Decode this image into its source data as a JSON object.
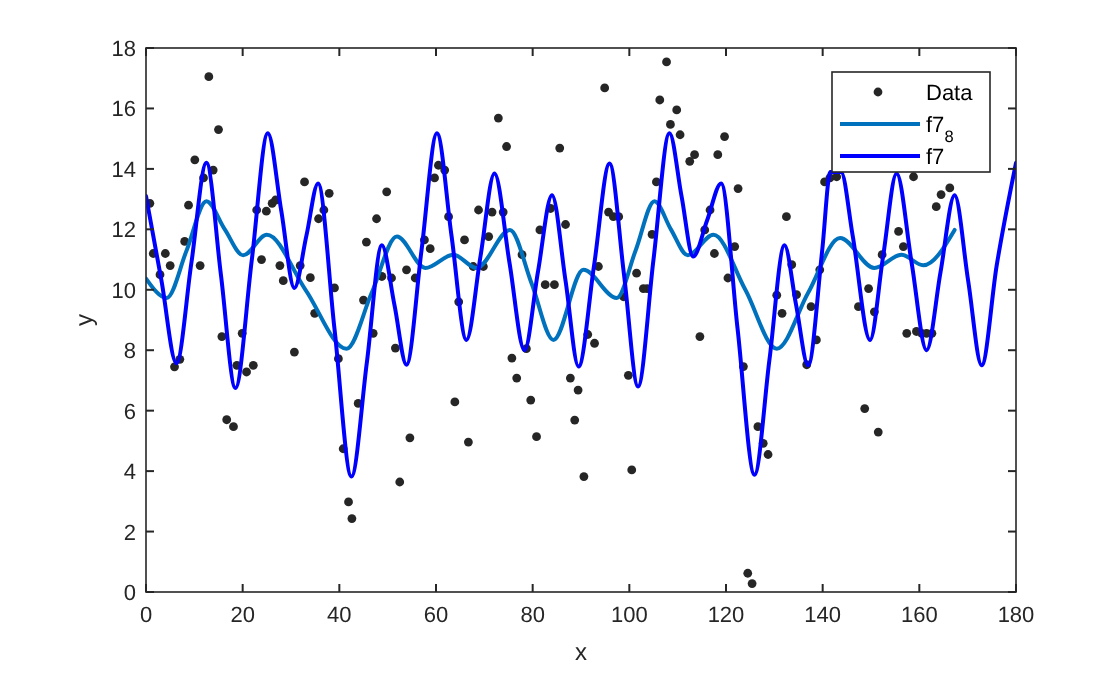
{
  "chart_data": {
    "type": "scatter",
    "xlabel": "x",
    "ylabel": "y",
    "xlim": [
      0,
      180
    ],
    "ylim": [
      0,
      18
    ],
    "xticks": [
      0,
      20,
      40,
      60,
      80,
      100,
      120,
      140,
      160,
      180
    ],
    "yticks": [
      0,
      2,
      4,
      6,
      8,
      10,
      12,
      14,
      16,
      18
    ],
    "grid": false,
    "legend": "top right",
    "series": [
      {
        "name": "Data",
        "marker": "circle",
        "color": "#262626",
        "x": [
          0.8,
          1.5,
          2.9,
          4.0,
          5.0,
          5.9,
          7.0,
          8.0,
          8.8,
          10.1,
          11.2,
          11.9,
          13.0,
          13.9,
          15.0,
          15.7,
          16.7,
          18.1,
          18.8,
          19.9,
          20.8,
          22.2,
          22.9,
          23.9,
          24.9,
          26.1,
          26.8,
          27.7,
          28.4,
          30.7,
          31.9,
          32.8,
          34.0,
          34.9,
          35.7,
          36.8,
          37.9,
          39.0,
          39.8,
          40.8,
          41.9,
          42.6,
          43.9,
          45.0,
          45.6,
          47.0,
          47.7,
          48.8,
          49.8,
          50.8,
          51.6,
          52.5,
          53.9,
          54.6,
          55.7,
          57.6,
          58.8,
          59.7,
          60.5,
          61.8,
          62.6,
          63.9,
          64.7,
          65.9,
          66.7,
          67.7,
          68.8,
          69.8,
          70.9,
          71.6,
          72.9,
          73.9,
          74.6,
          75.7,
          76.7,
          77.8,
          78.7,
          79.6,
          80.8,
          81.5,
          82.6,
          83.7,
          84.5,
          85.6,
          86.8,
          87.8,
          88.7,
          89.4,
          90.6,
          91.4,
          92.8,
          93.6,
          94.9,
          95.7,
          96.7,
          97.8,
          98.8,
          99.8,
          100.5,
          101.5,
          102.9,
          103.7,
          104.7,
          105.6,
          106.3,
          107.7,
          108.5,
          109.8,
          110.5,
          112.5,
          113.5,
          114.6,
          115.6,
          116.7,
          117.6,
          118.3,
          119.7,
          120.4,
          121.8,
          122.5,
          123.6,
          124.5,
          125.4,
          126.6,
          127.7,
          128.7,
          130.5,
          131.6,
          132.5,
          133.6,
          134.6,
          136.7,
          137.6,
          138.7,
          139.4,
          140.4,
          141.5,
          142.9,
          147.4,
          148.7,
          149.5,
          150.7,
          151.5,
          152.3,
          155.7,
          156.7,
          157.4,
          158.8,
          159.4,
          160.5,
          161.5,
          162.6,
          163.5,
          164.5,
          166.3
        ],
        "values": [
          12.86,
          11.2,
          10.5,
          11.2,
          10.8,
          7.45,
          7.7,
          11.6,
          12.8,
          14.3,
          10.8,
          13.7,
          17.05,
          13.96,
          15.3,
          8.45,
          5.7,
          5.47,
          7.5,
          8.56,
          7.28,
          7.5,
          12.64,
          11.0,
          12.6,
          12.86,
          12.97,
          10.8,
          10.3,
          7.94,
          10.8,
          13.57,
          10.4,
          9.22,
          12.35,
          12.64,
          13.19,
          10.06,
          7.72,
          4.74,
          2.98,
          2.43,
          6.24,
          9.66,
          11.58,
          8.56,
          12.35,
          10.44,
          13.24,
          10.39,
          8.07,
          3.64,
          10.66,
          5.1,
          10.39,
          11.65,
          11.36,
          13.7,
          14.12,
          13.96,
          12.42,
          6.29,
          9.6,
          11.65,
          4.96,
          10.77,
          12.64,
          10.77,
          11.76,
          12.57,
          15.68,
          12.57,
          14.74,
          7.74,
          7.08,
          11.16,
          8.05,
          6.35,
          5.14,
          11.98,
          10.17,
          12.69,
          10.17,
          14.69,
          12.16,
          7.08,
          5.69,
          6.68,
          3.82,
          8.52,
          8.23,
          10.77,
          16.68,
          12.57,
          12.42,
          12.42,
          9.77,
          7.17,
          4.04,
          10.55,
          10.04,
          10.04,
          11.83,
          13.57,
          16.28,
          17.54,
          15.47,
          15.95,
          15.13,
          14.25,
          14.47,
          8.45,
          11.98,
          12.64,
          11.2,
          14.47,
          15.07,
          10.39,
          11.43,
          13.35,
          7.46,
          0.62,
          0.28,
          5.47,
          4.92,
          4.55,
          9.82,
          9.22,
          12.42,
          10.83,
          9.84,
          7.52,
          9.44,
          8.34,
          10.66,
          13.57,
          13.7,
          13.74,
          9.44,
          6.07,
          10.04,
          9.27,
          5.29,
          11.16,
          11.93,
          11.43,
          8.56,
          13.74,
          8.62,
          8.56,
          8.56,
          8.56,
          12.75,
          13.15,
          13.37
        ]
      },
      {
        "name": "f7$_{8}$",
        "type": "line",
        "marker": "none",
        "color": "#0072bd",
        "x": [
          0,
          4.3,
          8.4,
          12.5,
          16.3,
          20.1,
          25.0,
          33,
          41.5,
          46.7,
          51.9,
          57.8,
          63.6,
          68.4,
          75.3,
          79.8,
          84.3,
          90.5,
          97.4,
          101.3,
          105.2,
          108.6,
          112.1,
          117.4,
          124,
          130.5,
          137,
          143.6,
          150.7,
          156.3,
          160.8,
          167.3
        ],
        "values": [
          10.37,
          9.73,
          11.3,
          12.93,
          12.0,
          11.14,
          11.82,
          10.0,
          8.05,
          9.9,
          11.76,
          10.72,
          11.16,
          10.72,
          11.98,
          10.2,
          8.34,
          10.66,
          9.73,
          11.3,
          12.93,
          12.0,
          11.14,
          11.82,
          10.0,
          8.05,
          9.9,
          11.71,
          10.72,
          11.16,
          10.81,
          11.98
        ]
      },
      {
        "name": "f7",
        "type": "line",
        "marker": "none",
        "color": "#0000ff",
        "x": [
          0,
          3.2,
          6.3,
          9.4,
          12.5,
          15.5,
          18.5,
          21.9,
          25.2,
          28,
          30.7,
          33.2,
          35.6,
          39,
          42.5,
          45.7,
          48.8,
          51.4,
          53.9,
          57,
          60.2,
          63.2,
          66.3,
          69.2,
          72.1,
          75.2,
          78.3,
          81.1,
          84.0,
          86.8,
          89.5,
          92.7,
          95.9,
          98.9,
          101.8,
          105,
          108.3,
          110.8,
          113.2,
          116.1,
          119.0,
          122.4,
          125.9,
          129,
          132.1,
          134.5,
          137.0,
          139.9,
          141.6,
          143.8,
          146.2,
          149.8,
          152.5,
          155.3,
          158.4,
          161.5,
          164.4,
          167.3,
          170.1,
          172.9,
          176,
          180
        ],
        "values": [
          13.1,
          10.3,
          7.57,
          10.9,
          14.2,
          10.5,
          6.75,
          11.0,
          15.18,
          12.6,
          10.06,
          11.8,
          13.52,
          8.7,
          3.82,
          7.6,
          11.47,
          9.5,
          7.52,
          11.3,
          15.18,
          11.8,
          8.34,
          11.1,
          13.85,
          10.9,
          8.0,
          10.6,
          13.13,
          10.3,
          7.46,
          10.8,
          14.18,
          10.5,
          6.8,
          11.0,
          15.18,
          13.1,
          11.1,
          12.3,
          13.52,
          8.7,
          3.88,
          7.7,
          11.47,
          9.5,
          7.5,
          11.3,
          13.9,
          13.9,
          11.8,
          8.34,
          11.1,
          13.85,
          10.9,
          8.0,
          10.6,
          13.13,
          10.3,
          7.5,
          10.8,
          14.2
        ]
      }
    ]
  }
}
